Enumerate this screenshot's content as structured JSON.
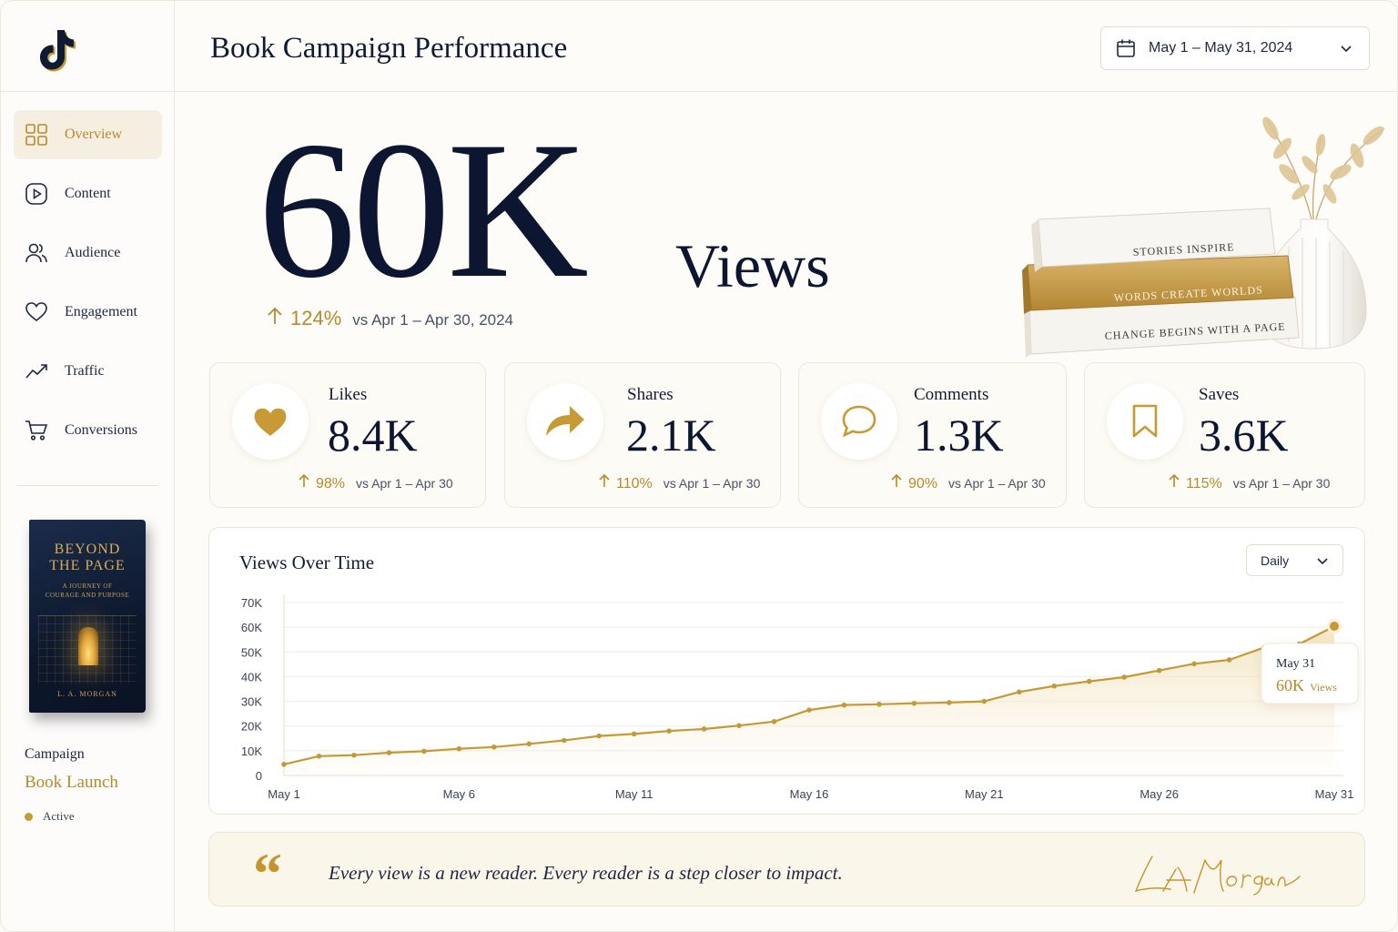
{
  "app": {
    "title": "Book Campaign Performance"
  },
  "header": {
    "date_range": "May 1 – May 31, 2024"
  },
  "sidebar": {
    "items": [
      {
        "label": "Overview",
        "icon": "grid-icon",
        "active": true
      },
      {
        "label": "Content",
        "icon": "play-icon",
        "active": false
      },
      {
        "label": "Audience",
        "icon": "users-icon",
        "active": false
      },
      {
        "label": "Engagement",
        "icon": "heart-outline-icon",
        "active": false
      },
      {
        "label": "Traffic",
        "icon": "trend-icon",
        "active": false
      },
      {
        "label": "Conversions",
        "icon": "cart-icon",
        "active": false
      }
    ],
    "book": {
      "title_line1": "BEYOND",
      "title_line2": "THE PAGE",
      "subtitle_line1": "A JOURNEY OF",
      "subtitle_line2": "COURAGE AND PURPOSE",
      "author": "L. A. MORGAN"
    },
    "campaign": {
      "label": "Campaign",
      "name": "Book Launch",
      "status": "Active"
    }
  },
  "hero": {
    "value": "60K",
    "unit": "Views",
    "change": "124%",
    "comparison": "vs Apr 1 – Apr 30, 2024"
  },
  "decor_books": {
    "top": "STORIES INSPIRE",
    "middle": "WORDS CREATE WORLDS",
    "bottom": "CHANGE BEGINS WITH A PAGE"
  },
  "kpis": [
    {
      "label": "Likes",
      "value": "8.4K",
      "change": "98%",
      "comparison": "vs Apr 1 – Apr 30",
      "icon": "heart-icon"
    },
    {
      "label": "Shares",
      "value": "2.1K",
      "change": "110%",
      "comparison": "vs Apr 1 – Apr 30",
      "icon": "share-arrow-icon"
    },
    {
      "label": "Comments",
      "value": "1.3K",
      "change": "90%",
      "comparison": "vs Apr 1 – Apr 30",
      "icon": "comment-icon"
    },
    {
      "label": "Saves",
      "value": "3.6K",
      "change": "115%",
      "comparison": "vs Apr 1 – Apr 30",
      "icon": "bookmark-icon"
    }
  ],
  "chart": {
    "title": "Views Over Time",
    "granularity": "Daily",
    "tooltip": {
      "date": "May 31",
      "value": "60K",
      "unit": "Views"
    }
  },
  "chart_data": {
    "type": "area",
    "title": "Views Over Time",
    "x": [
      "May 1",
      "May 2",
      "May 3",
      "May 4",
      "May 5",
      "May 6",
      "May 7",
      "May 8",
      "May 9",
      "May 10",
      "May 11",
      "May 12",
      "May 13",
      "May 14",
      "May 15",
      "May 16",
      "May 17",
      "May 18",
      "May 19",
      "May 20",
      "May 21",
      "May 22",
      "May 23",
      "May 24",
      "May 25",
      "May 26",
      "May 27",
      "May 28",
      "May 29",
      "May 30",
      "May 31"
    ],
    "x_ticks": [
      "May 1",
      "May 6",
      "May 11",
      "May 16",
      "May 21",
      "May 26",
      "May 31"
    ],
    "y_ticks": [
      "0",
      "10K",
      "20K",
      "30K",
      "40K",
      "50K",
      "60K",
      "70K"
    ],
    "ylim": [
      0,
      70000
    ],
    "series": [
      {
        "values": [
          4500,
          7800,
          8200,
          9200,
          9800,
          10800,
          11500,
          12800,
          14200,
          16000,
          16800,
          18000,
          18800,
          20200,
          21800,
          26500,
          28500,
          28800,
          29200,
          29500,
          30000,
          33800,
          36200,
          38100,
          39800,
          42500,
          45200,
          46800,
          51800,
          53200,
          60400
        ]
      }
    ],
    "grid": true,
    "color": "#c49a36"
  },
  "quote": {
    "mark": "“",
    "text": "Every view is a new reader. Every reader is a step closer to impact.",
    "signature": "L. A. Morgan"
  },
  "colors": {
    "accent": "#c49a36",
    "navy": "#0c1630",
    "bg": "#fdfcf9"
  }
}
